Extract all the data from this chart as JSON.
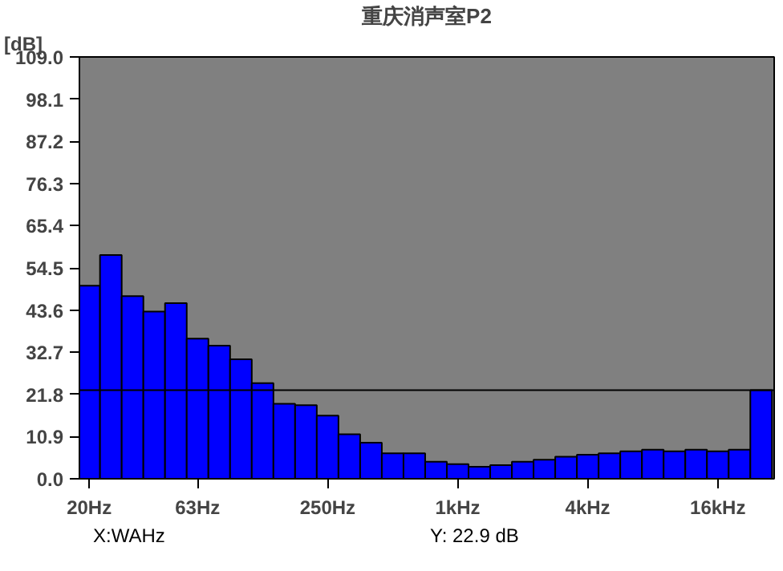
{
  "chart_data": {
    "type": "bar",
    "title": "重庆消声室P2",
    "ylabel": "[dB]",
    "categories": [
      "20Hz",
      null,
      null,
      null,
      null,
      "63Hz",
      null,
      null,
      null,
      null,
      null,
      "250Hz",
      null,
      null,
      null,
      null,
      null,
      "1kHz",
      null,
      null,
      null,
      null,
      null,
      "4kHz",
      null,
      null,
      null,
      null,
      null,
      "16kHz",
      null,
      null
    ],
    "values": [
      49.9,
      57.8,
      47.2,
      43.2,
      45.4,
      36.2,
      34.4,
      30.9,
      24.7,
      19.4,
      19.0,
      16.3,
      11.5,
      9.3,
      6.6,
      6.6,
      4.4,
      3.8,
      3.1,
      3.5,
      4.4,
      4.9,
      5.7,
      6.2,
      6.6,
      7.1,
      7.5,
      7.1,
      7.5,
      7.1,
      7.5,
      22.9
    ],
    "color": "#0000ff",
    "ylim": [
      0,
      109
    ],
    "yticks": [
      {
        "value": 0,
        "label": "0.0"
      },
      10.9,
      21.8,
      32.7,
      43.6,
      54.5,
      65.4,
      76.3,
      87.2,
      98.1,
      {
        "value": 109,
        "label": "109.0"
      }
    ],
    "ref_lines": [
      {
        "axis": "y",
        "value": 22.9,
        "color": "#000000"
      }
    ],
    "annotations": [
      "X:WAHz",
      "Y: 22.9 dB"
    ],
    "grid": false
  }
}
